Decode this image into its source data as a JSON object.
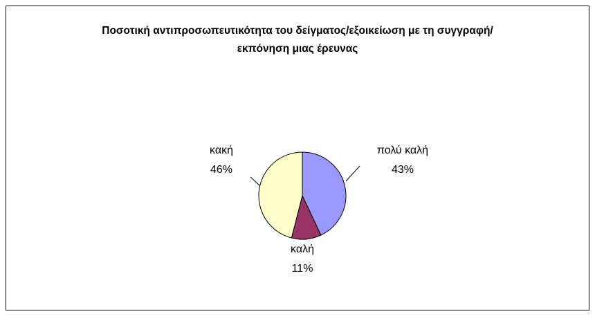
{
  "chart_data": {
    "type": "pie",
    "title": "Ποσοτική αντιπροσωπευτικότητα του δείγματος/εξοικείωση με τη συγγραφή/εκπόνηση μιας έρευνας",
    "categories": [
      "πολύ καλή",
      "καλή",
      "κακή"
    ],
    "values": [
      43,
      11,
      46
    ],
    "value_labels": [
      "43%",
      "11%",
      "46%"
    ],
    "colors": [
      "#9999ff",
      "#993366",
      "#ffffcc"
    ]
  }
}
